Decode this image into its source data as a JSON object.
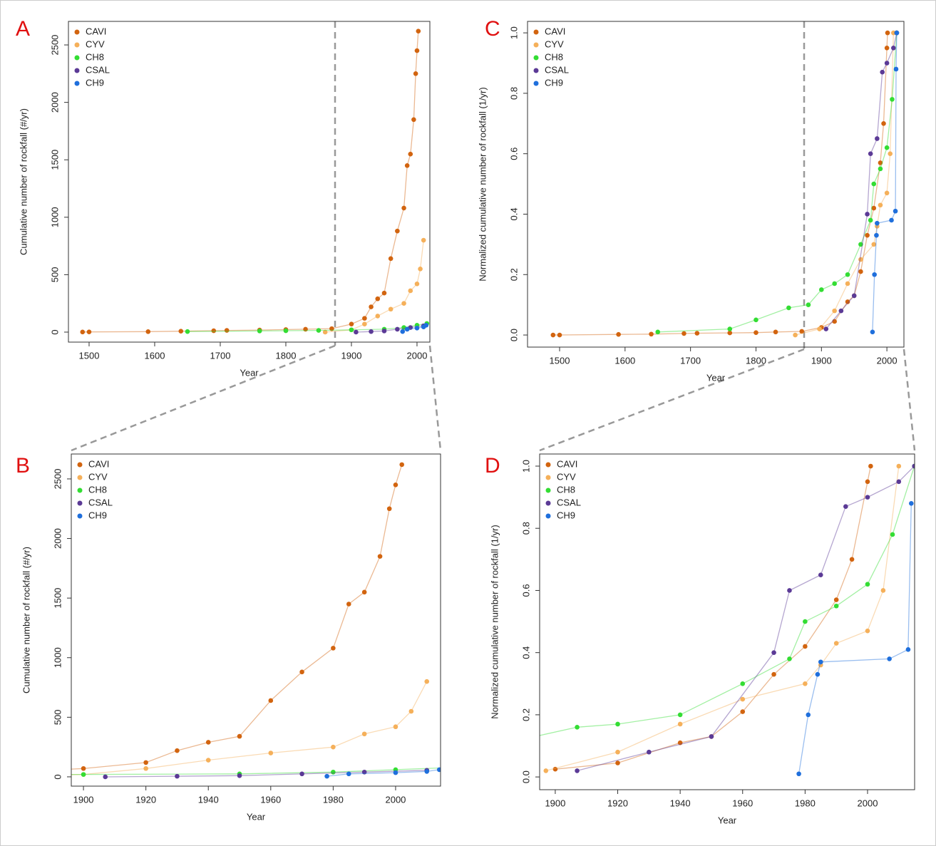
{
  "chart_data": [
    {
      "type": "line",
      "panel": "A",
      "xlabel": "Year",
      "ylabel": "Cumulative number of rockfall (#/yr)",
      "xlim": [
        1468.5,
        2019.6
      ],
      "ylim": [
        -87,
        2705
      ],
      "xticks": [
        1500,
        1600,
        1700,
        1800,
        1900,
        2000
      ],
      "yticks": [
        0,
        500,
        1000,
        1500,
        2000,
        2500
      ],
      "legend": "top-left",
      "series": [
        {
          "name": "CAVI",
          "color": "#d2640f",
          "x": [
            1490,
            1500,
            1590,
            1640,
            1690,
            1710,
            1760,
            1800,
            1830,
            1870,
            1900,
            1920,
            1930,
            1940,
            1950,
            1960,
            1970,
            1980,
            1985,
            1990,
            1995,
            1998,
            2000,
            2002
          ],
          "values": [
            1,
            2,
            4,
            8,
            12,
            15,
            18,
            22,
            25,
            30,
            70,
            120,
            220,
            290,
            340,
            640,
            880,
            1080,
            1450,
            1550,
            1850,
            2250,
            2450,
            2620
          ]
        },
        {
          "name": "CYV",
          "color": "#f5b05a",
          "x": [
            1860,
            1900,
            1920,
            1940,
            1960,
            1980,
            1990,
            2000,
            2005,
            2010
          ],
          "values": [
            0,
            20,
            70,
            140,
            200,
            250,
            360,
            420,
            550,
            800
          ]
        },
        {
          "name": "CH8",
          "color": "#33dd33",
          "x": [
            1650,
            1760,
            1800,
            1850,
            1900,
            1950,
            1980,
            2000,
            2015
          ],
          "values": [
            5,
            10,
            12,
            15,
            20,
            25,
            40,
            60,
            75
          ]
        },
        {
          "name": "CSAL",
          "color": "#5b3a96",
          "x": [
            1907,
            1930,
            1950,
            1970,
            1990,
            2010
          ],
          "values": [
            0,
            5,
            10,
            25,
            40,
            55
          ]
        },
        {
          "name": "CH9",
          "color": "#1f6fdc",
          "x": [
            1978,
            1985,
            2000,
            2010,
            2014
          ],
          "values": [
            5,
            25,
            35,
            45,
            60
          ]
        }
      ]
    },
    {
      "type": "line",
      "panel": "B",
      "xlabel": "Year",
      "ylabel": "Cumulative number of rockfall (#/yr)",
      "xlim": [
        1896.1,
        2014.4
      ],
      "ylim": [
        -78,
        2709
      ],
      "xticks": [
        1900,
        1920,
        1940,
        1960,
        1980,
        2000
      ],
      "yticks": [
        0,
        500,
        1000,
        1500,
        2000,
        2500
      ],
      "legend": "top-left",
      "series": [
        {
          "name": "CAVI",
          "color": "#d2640f",
          "x": [
            1870,
            1900,
            1920,
            1930,
            1940,
            1950,
            1960,
            1970,
            1980,
            1985,
            1990,
            1995,
            1998,
            2000,
            2002
          ],
          "values": [
            30,
            70,
            120,
            220,
            290,
            340,
            640,
            880,
            1080,
            1450,
            1550,
            1850,
            2250,
            2450,
            2620
          ]
        },
        {
          "name": "CYV",
          "color": "#f5b05a",
          "x": [
            1860,
            1900,
            1920,
            1940,
            1960,
            1980,
            1990,
            2000,
            2005,
            2010
          ],
          "values": [
            0,
            20,
            70,
            140,
            200,
            250,
            360,
            420,
            550,
            800
          ]
        },
        {
          "name": "CH8",
          "color": "#33dd33",
          "x": [
            1850,
            1900,
            1950,
            1980,
            2000,
            2015
          ],
          "values": [
            15,
            20,
            25,
            40,
            60,
            75
          ]
        },
        {
          "name": "CSAL",
          "color": "#5b3a96",
          "x": [
            1907,
            1930,
            1950,
            1970,
            1990,
            2010
          ],
          "values": [
            0,
            5,
            10,
            25,
            40,
            55
          ]
        },
        {
          "name": "CH9",
          "color": "#1f6fdc",
          "x": [
            1978,
            1985,
            2000,
            2010,
            2014
          ],
          "values": [
            5,
            25,
            35,
            45,
            60
          ]
        }
      ]
    },
    {
      "type": "line",
      "panel": "C",
      "xlabel": "Year",
      "ylabel": "Normalized cumulative number of rockfall (1/yr)",
      "xlim": [
        1451,
        2026
      ],
      "ylim": [
        -0.04,
        1.038
      ],
      "xticks": [
        1500,
        1600,
        1700,
        1800,
        1900,
        2000
      ],
      "yticks": [
        {
          "value": 0,
          "label": "0.0"
        },
        0.2,
        0.4,
        0.6,
        0.8,
        {
          "value": 1,
          "label": "1.0"
        }
      ],
      "legend": "top-left",
      "series": [
        {
          "name": "CAVI",
          "color": "#d2640f",
          "x": [
            1490,
            1500,
            1590,
            1640,
            1690,
            1710,
            1760,
            1800,
            1830,
            1870,
            1900,
            1920,
            1940,
            1950,
            1960,
            1970,
            1980,
            1990,
            1995,
            2000,
            2001
          ],
          "values": [
            0,
            0,
            0.002,
            0.003,
            0.005,
            0.006,
            0.007,
            0.008,
            0.01,
            0.012,
            0.025,
            0.045,
            0.11,
            0.13,
            0.21,
            0.33,
            0.42,
            0.57,
            0.7,
            0.95,
            1.0
          ]
        },
        {
          "name": "CYV",
          "color": "#f5b05a",
          "x": [
            1860,
            1897,
            1920,
            1940,
            1960,
            1980,
            1985,
            1990,
            2000,
            2005,
            2010
          ],
          "values": [
            0,
            0.02,
            0.08,
            0.17,
            0.25,
            0.3,
            0.36,
            0.43,
            0.47,
            0.6,
            1.0
          ]
        },
        {
          "name": "CH8",
          "color": "#33dd33",
          "x": [
            1650,
            1760,
            1800,
            1850,
            1880,
            1900,
            1920,
            1940,
            1960,
            1975,
            1980,
            1990,
            2000,
            2008,
            2015
          ],
          "values": [
            0.01,
            0.02,
            0.05,
            0.09,
            0.1,
            0.15,
            0.17,
            0.2,
            0.3,
            0.38,
            0.5,
            0.55,
            0.62,
            0.78,
            1.0
          ]
        },
        {
          "name": "CSAL",
          "color": "#5b3a96",
          "x": [
            1907,
            1930,
            1950,
            1970,
            1975,
            1985,
            1993,
            2000,
            2010,
            2015
          ],
          "values": [
            0.02,
            0.08,
            0.13,
            0.4,
            0.6,
            0.65,
            0.87,
            0.9,
            0.95,
            1.0
          ]
        },
        {
          "name": "CH9",
          "color": "#1f6fdc",
          "x": [
            1978,
            1981,
            1984,
            1985,
            2007,
            2013,
            2014,
            2015
          ],
          "values": [
            0.01,
            0.2,
            0.33,
            0.37,
            0.38,
            0.41,
            0.88,
            1.0
          ]
        }
      ]
    },
    {
      "type": "line",
      "panel": "D",
      "xlabel": "Year",
      "ylabel": "Normalized cumulative number of rockfall (1/yr)",
      "xlim": [
        1895,
        2015.07
      ],
      "ylim": [
        -0.041,
        1.039
      ],
      "xticks": [
        1900,
        1920,
        1940,
        1960,
        1980,
        2000
      ],
      "yticks": [
        {
          "value": 0,
          "label": "0.0"
        },
        0.2,
        0.4,
        0.6,
        0.8,
        {
          "value": 1,
          "label": "1.0"
        }
      ],
      "legend": "top-left",
      "series": [
        {
          "name": "CAVI",
          "color": "#d2640f",
          "x": [
            1900,
            1920,
            1940,
            1950,
            1960,
            1970,
            1980,
            1990,
            1995,
            2000,
            2001
          ],
          "values": [
            0.025,
            0.045,
            0.11,
            0.13,
            0.21,
            0.33,
            0.42,
            0.57,
            0.7,
            0.95,
            1.0
          ]
        },
        {
          "name": "CYV",
          "color": "#f5b05a",
          "x": [
            1897,
            1920,
            1940,
            1960,
            1980,
            1985,
            1990,
            2000,
            2005,
            2010
          ],
          "values": [
            0.02,
            0.08,
            0.17,
            0.25,
            0.3,
            0.36,
            0.43,
            0.47,
            0.6,
            1.0
          ]
        },
        {
          "name": "CH8",
          "color": "#33dd33",
          "x": [
            1880,
            1907,
            1920,
            1940,
            1960,
            1975,
            1980,
            1990,
            2000,
            2008,
            2015
          ],
          "values": [
            0.1,
            0.16,
            0.17,
            0.2,
            0.3,
            0.38,
            0.5,
            0.55,
            0.62,
            0.78,
            1.0
          ]
        },
        {
          "name": "CSAL",
          "color": "#5b3a96",
          "x": [
            1907,
            1930,
            1950,
            1970,
            1975,
            1985,
            1993,
            2000,
            2010,
            2015
          ],
          "values": [
            0.02,
            0.08,
            0.13,
            0.4,
            0.6,
            0.65,
            0.87,
            0.9,
            0.95,
            1.0
          ]
        },
        {
          "name": "CH9",
          "color": "#1f6fdc",
          "x": [
            1978,
            1981,
            1984,
            1985,
            2007,
            2013,
            2014
          ],
          "values": [
            0.01,
            0.2,
            0.33,
            0.37,
            0.38,
            0.41,
            0.88
          ]
        }
      ]
    }
  ]
}
